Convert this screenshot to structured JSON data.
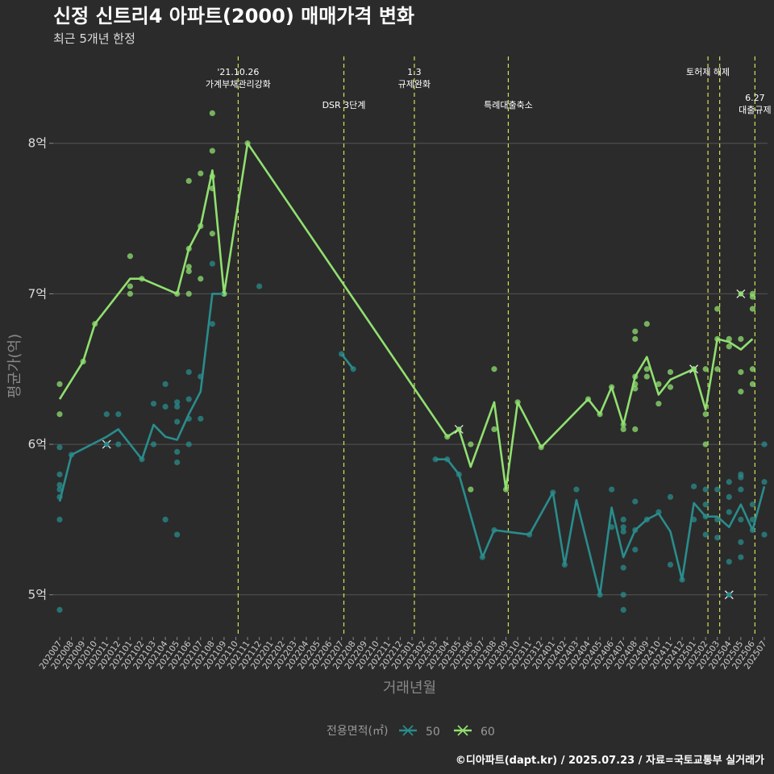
{
  "title": "신정 신트리4 아파트(2000) 매매가격 변화",
  "subtitle": "최근 5개년 한정",
  "caption": "©디아파트(dapt.kr) / 2025.07.23 / 자료=국토교통부 실거래가",
  "colors": {
    "background": "#2b2b2b",
    "grid": "#555555",
    "event_line": "#d4e157",
    "series_50": "#2a8c8c",
    "series_60": "#90e070"
  },
  "chart_data": {
    "type": "line",
    "xlabel": "거래년월",
    "ylabel": "평균가(억)",
    "ylim": [
      4.72,
      8.62
    ],
    "yticks": [
      {
        "value": 5,
        "label": "5억"
      },
      {
        "value": 6,
        "label": "6억"
      },
      {
        "value": 7,
        "label": "7억"
      },
      {
        "value": 8,
        "label": "8억"
      }
    ],
    "categories": [
      "202007",
      "202008",
      "202009",
      "202010",
      "202011",
      "202012",
      "202101",
      "202102",
      "202103",
      "202104",
      "202105",
      "202106",
      "202107",
      "202108",
      "202109",
      "202110",
      "202111",
      "202112",
      "202201",
      "202202",
      "202203",
      "202204",
      "202205",
      "202206",
      "202207",
      "202208",
      "202209",
      "202210",
      "202211",
      "202212",
      "202301",
      "202302",
      "202303",
      "202304",
      "202305",
      "202306",
      "202307",
      "202308",
      "202309",
      "202310",
      "202311",
      "202312",
      "202401",
      "202402",
      "202403",
      "202404",
      "202405",
      "202406",
      "202407",
      "202408",
      "202409",
      "202410",
      "202411",
      "202412",
      "202501",
      "202502",
      "202503",
      "202504",
      "202505",
      "202506",
      "202507"
    ],
    "legend": {
      "title": "전용면적(㎡)",
      "placement": "bottom"
    },
    "events": [
      {
        "x": 15.2,
        "lines": [
          "'21.10.26",
          "가계부채관리강화"
        ],
        "row": 0
      },
      {
        "x": 24.2,
        "lines": [
          "DSR 3단계"
        ],
        "row": 1
      },
      {
        "x": 30.2,
        "lines": [
          "1.3",
          "규제완화"
        ],
        "row": 0
      },
      {
        "x": 38.2,
        "lines": [
          "특례대출축소"
        ],
        "row": 1
      },
      {
        "x": 55.2,
        "lines": [
          "토허제 해제"
        ],
        "row": 0
      },
      {
        "x": 56.2,
        "lines": [
          ""
        ],
        "row": 0
      },
      {
        "x": 59.2,
        "lines": [
          "6.27",
          "대출규제"
        ],
        "row": 2
      }
    ],
    "series": [
      {
        "name": "50",
        "color": "#2a8c8c",
        "line": [
          [
            0,
            5.62
          ],
          [
            1,
            5.93
          ],
          [
            4,
            6.05
          ],
          [
            5,
            6.1
          ],
          [
            7,
            5.9
          ],
          [
            8,
            6.13
          ],
          [
            9,
            6.05
          ],
          [
            10,
            6.03
          ],
          [
            11,
            6.2
          ],
          [
            12,
            6.35
          ],
          [
            13,
            7.0
          ],
          [
            14,
            7.0
          ],
          [
            null,
            null
          ],
          [
            24,
            6.6
          ],
          [
            25,
            6.5
          ],
          [
            null,
            null
          ],
          [
            32,
            5.9
          ],
          [
            33,
            5.9
          ],
          [
            34,
            5.8
          ],
          [
            36,
            5.25
          ],
          [
            37,
            5.43
          ],
          [
            40,
            5.4
          ],
          [
            42,
            5.68
          ],
          [
            43,
            5.2
          ],
          [
            44,
            5.63
          ],
          [
            46,
            5.0
          ],
          [
            47,
            5.58
          ],
          [
            48,
            5.25
          ],
          [
            49,
            5.43
          ],
          [
            50,
            5.5
          ],
          [
            51,
            5.54
          ],
          [
            52,
            5.42
          ],
          [
            53,
            5.1
          ],
          [
            54,
            5.61
          ],
          [
            55,
            5.52
          ],
          [
            56,
            5.52
          ],
          [
            57,
            5.45
          ],
          [
            58,
            5.6
          ],
          [
            59,
            5.43
          ],
          [
            60,
            5.72
          ]
        ],
        "points": [
          [
            0,
            4.9
          ],
          [
            0,
            5.5
          ],
          [
            0,
            5.7
          ],
          [
            0,
            5.73
          ],
          [
            0,
            5.8
          ],
          [
            0,
            5.98
          ],
          [
            0,
            5.65
          ],
          [
            1,
            5.93
          ],
          [
            4,
            6.2
          ],
          [
            5,
            6.2
          ],
          [
            5,
            6.0
          ],
          [
            7,
            5.9
          ],
          [
            8,
            6.27
          ],
          [
            8,
            6.0
          ],
          [
            9,
            6.4
          ],
          [
            9,
            5.5
          ],
          [
            9,
            6.25
          ],
          [
            10,
            6.28
          ],
          [
            10,
            6.25
          ],
          [
            10,
            6.15
          ],
          [
            10,
            5.95
          ],
          [
            10,
            5.88
          ],
          [
            10,
            5.4
          ],
          [
            11,
            6.48
          ],
          [
            11,
            6.3
          ],
          [
            11,
            6.17
          ],
          [
            11,
            6.0
          ],
          [
            12,
            6.45
          ],
          [
            12,
            6.17
          ],
          [
            13,
            7.2
          ],
          [
            13,
            6.8
          ],
          [
            14,
            7.0
          ],
          [
            17,
            7.05
          ],
          [
            24,
            6.6
          ],
          [
            25,
            6.5
          ],
          [
            32,
            5.9
          ],
          [
            33,
            5.9
          ],
          [
            34,
            5.8
          ],
          [
            36,
            5.25
          ],
          [
            37,
            5.43
          ],
          [
            40,
            5.4
          ],
          [
            42,
            5.68
          ],
          [
            43,
            5.2
          ],
          [
            44,
            5.7
          ],
          [
            46,
            5.0
          ],
          [
            47,
            5.7
          ],
          [
            47,
            5.45
          ],
          [
            48,
            5.5
          ],
          [
            48,
            5.45
          ],
          [
            48,
            5.42
          ],
          [
            48,
            5.18
          ],
          [
            48,
            5.0
          ],
          [
            48,
            4.9
          ],
          [
            49,
            5.62
          ],
          [
            49,
            5.43
          ],
          [
            49,
            5.3
          ],
          [
            50,
            5.5
          ],
          [
            51,
            5.55
          ],
          [
            52,
            5.65
          ],
          [
            52,
            5.2
          ],
          [
            53,
            5.1
          ],
          [
            54,
            5.72
          ],
          [
            54,
            5.5
          ],
          [
            55,
            5.7
          ],
          [
            55,
            5.6
          ],
          [
            55,
            5.52
          ],
          [
            55,
            5.4
          ],
          [
            56,
            5.7
          ],
          [
            56,
            5.5
          ],
          [
            56,
            5.38
          ],
          [
            57,
            5.75
          ],
          [
            57,
            5.65
          ],
          [
            57,
            5.55
          ],
          [
            57,
            5.22
          ],
          [
            58,
            5.8
          ],
          [
            58,
            5.78
          ],
          [
            58,
            5.7
          ],
          [
            58,
            5.5
          ],
          [
            58,
            5.35
          ],
          [
            58,
            5.25
          ],
          [
            59,
            5.6
          ],
          [
            59,
            5.5
          ],
          [
            59,
            5.43
          ],
          [
            60,
            6.0
          ],
          [
            60,
            5.75
          ],
          [
            60,
            5.4
          ]
        ],
        "markers": [
          [
            4,
            6.0
          ],
          [
            57,
            5.0
          ]
        ]
      },
      {
        "name": "60",
        "color": "#90e070",
        "line": [
          [
            0,
            6.3
          ],
          [
            2,
            6.55
          ],
          [
            3,
            6.8
          ],
          [
            6,
            7.1
          ],
          [
            7,
            7.1
          ],
          [
            10,
            7.0
          ],
          [
            11,
            7.3
          ],
          [
            12,
            7.45
          ],
          [
            13,
            7.82
          ],
          [
            14,
            7.0
          ],
          [
            16,
            8.0
          ],
          [
            33,
            6.05
          ],
          [
            34,
            6.1
          ],
          [
            35,
            5.85
          ],
          [
            37,
            6.28
          ],
          [
            38,
            5.7
          ],
          [
            39,
            6.28
          ],
          [
            41,
            5.98
          ],
          [
            45,
            6.3
          ],
          [
            46,
            6.2
          ],
          [
            47,
            6.38
          ],
          [
            48,
            6.13
          ],
          [
            49,
            6.45
          ],
          [
            50,
            6.58
          ],
          [
            51,
            6.33
          ],
          [
            52,
            6.43
          ],
          [
            54,
            6.5
          ],
          [
            55,
            6.23
          ],
          [
            56,
            6.7
          ],
          [
            57,
            6.68
          ],
          [
            58,
            6.63
          ],
          [
            59,
            6.7
          ]
        ],
        "points": [
          [
            0,
            6.4
          ],
          [
            0,
            6.2
          ],
          [
            2,
            6.55
          ],
          [
            3,
            6.8
          ],
          [
            6,
            7.25
          ],
          [
            6,
            7.05
          ],
          [
            6,
            7.0
          ],
          [
            7,
            7.1
          ],
          [
            10,
            7.0
          ],
          [
            11,
            7.75
          ],
          [
            11,
            7.3
          ],
          [
            11,
            7.18
          ],
          [
            11,
            7.15
          ],
          [
            11,
            7.0
          ],
          [
            12,
            7.8
          ],
          [
            12,
            7.45
          ],
          [
            12,
            7.1
          ],
          [
            13,
            8.2
          ],
          [
            13,
            7.95
          ],
          [
            13,
            7.78
          ],
          [
            13,
            7.7
          ],
          [
            13,
            7.4
          ],
          [
            14,
            7.0
          ],
          [
            16,
            8.0
          ],
          [
            33,
            6.05
          ],
          [
            35,
            6.0
          ],
          [
            35,
            5.7
          ],
          [
            37,
            6.5
          ],
          [
            37,
            6.1
          ],
          [
            38,
            5.7
          ],
          [
            39,
            6.28
          ],
          [
            41,
            5.98
          ],
          [
            45,
            6.3
          ],
          [
            46,
            6.2
          ],
          [
            47,
            6.38
          ],
          [
            48,
            6.13
          ],
          [
            48,
            6.1
          ],
          [
            49,
            6.75
          ],
          [
            49,
            6.7
          ],
          [
            49,
            6.45
          ],
          [
            49,
            6.4
          ],
          [
            49,
            6.37
          ],
          [
            49,
            6.1
          ],
          [
            50,
            6.8
          ],
          [
            50,
            6.5
          ],
          [
            50,
            6.45
          ],
          [
            51,
            6.4
          ],
          [
            51,
            6.27
          ],
          [
            52,
            6.48
          ],
          [
            52,
            6.38
          ],
          [
            54,
            6.5
          ],
          [
            55,
            6.5
          ],
          [
            55,
            6.2
          ],
          [
            55,
            6.0
          ],
          [
            56,
            6.9
          ],
          [
            56,
            6.7
          ],
          [
            56,
            6.5
          ],
          [
            57,
            6.7
          ],
          [
            57,
            6.65
          ],
          [
            58,
            6.7
          ],
          [
            58,
            6.48
          ],
          [
            58,
            6.35
          ],
          [
            59,
            7.0
          ],
          [
            59,
            6.98
          ],
          [
            59,
            6.9
          ],
          [
            59,
            6.5
          ],
          [
            59,
            6.4
          ]
        ],
        "markers": [
          [
            34,
            6.1
          ],
          [
            54,
            6.5
          ],
          [
            58,
            7.0
          ]
        ]
      }
    ]
  }
}
